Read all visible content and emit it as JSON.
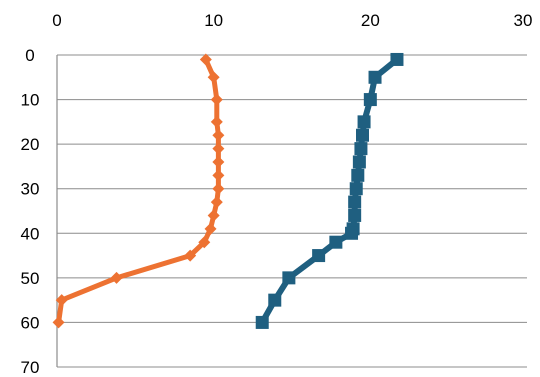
{
  "chart_data": {
    "type": "line",
    "title": "",
    "xlabel": "",
    "ylabel": "",
    "x_axis_position": "top",
    "y_axis_inverted": true,
    "xlim": [
      0,
      30
    ],
    "ylim": [
      0,
      70
    ],
    "x_ticks": [
      0,
      10,
      20,
      30
    ],
    "y_ticks": [
      0,
      10,
      20,
      30,
      40,
      50,
      60,
      70
    ],
    "x_tick_labels": [
      "0",
      "10",
      "20",
      "30"
    ],
    "y_tick_labels": [
      "0",
      "10",
      "20",
      "30",
      "40",
      "50",
      "60",
      "70"
    ],
    "grid": {
      "horizontal": true,
      "vertical": false
    },
    "legend": "none",
    "series": [
      {
        "color": "#ed7232",
        "marker": "diamond",
        "points": [
          {
            "x": 9.5,
            "y": 1
          },
          {
            "x": 10.0,
            "y": 5
          },
          {
            "x": 10.2,
            "y": 10
          },
          {
            "x": 10.2,
            "y": 15
          },
          {
            "x": 10.3,
            "y": 18
          },
          {
            "x": 10.3,
            "y": 21
          },
          {
            "x": 10.3,
            "y": 24
          },
          {
            "x": 10.3,
            "y": 27
          },
          {
            "x": 10.3,
            "y": 30
          },
          {
            "x": 10.2,
            "y": 33
          },
          {
            "x": 10.0,
            "y": 36
          },
          {
            "x": 9.8,
            "y": 39
          },
          {
            "x": 9.4,
            "y": 42
          },
          {
            "x": 8.5,
            "y": 45
          },
          {
            "x": 3.8,
            "y": 50
          },
          {
            "x": 0.3,
            "y": 55
          },
          {
            "x": 0.1,
            "y": 60
          }
        ]
      },
      {
        "color": "#1f5f80",
        "marker": "square",
        "points": [
          {
            "x": 21.7,
            "y": 1
          },
          {
            "x": 20.3,
            "y": 5
          },
          {
            "x": 20.0,
            "y": 10
          },
          {
            "x": 19.6,
            "y": 15
          },
          {
            "x": 19.5,
            "y": 18
          },
          {
            "x": 19.4,
            "y": 21
          },
          {
            "x": 19.3,
            "y": 24
          },
          {
            "x": 19.2,
            "y": 27
          },
          {
            "x": 19.1,
            "y": 30
          },
          {
            "x": 19.0,
            "y": 33
          },
          {
            "x": 19.0,
            "y": 36
          },
          {
            "x": 18.9,
            "y": 39
          },
          {
            "x": 18.8,
            "y": 40
          },
          {
            "x": 17.8,
            "y": 42
          },
          {
            "x": 16.7,
            "y": 45
          },
          {
            "x": 14.8,
            "y": 50
          },
          {
            "x": 13.9,
            "y": 55
          },
          {
            "x": 13.1,
            "y": 60
          }
        ]
      }
    ]
  }
}
